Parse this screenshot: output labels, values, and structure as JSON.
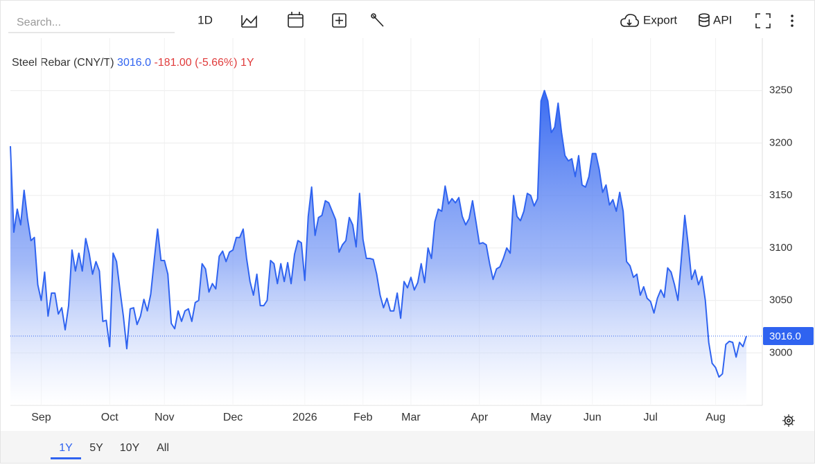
{
  "toolbar": {
    "search_placeholder": "Search...",
    "interval": "1D",
    "export": "Export",
    "api": "API"
  },
  "range_buttons": [
    "1Y",
    "5Y",
    "10Y",
    "All"
  ],
  "chart_data": {
    "type": "area",
    "title": "Steel Rebar (CNY/T)",
    "price": "3016.0",
    "change": "-181.00",
    "change_pct": "(-5.66%)",
    "period": "1Y",
    "color": "#2f63f0",
    "change_color": "#e03b3b",
    "grid": true,
    "ylim": [
      2950,
      3300
    ],
    "yticks": [
      3000,
      3050,
      3100,
      3150,
      3200,
      3250
    ],
    "last_value_label": "3016.0",
    "categories": [
      null,
      null,
      null,
      null,
      null,
      null,
      null,
      null,
      null,
      "Sep",
      null,
      null,
      null,
      null,
      null,
      null,
      null,
      null,
      null,
      null,
      null,
      null,
      null,
      null,
      null,
      null,
      null,
      null,
      null,
      "Oct",
      null,
      null,
      null,
      null,
      null,
      null,
      null,
      null,
      null,
      null,
      null,
      null,
      null,
      null,
      null,
      "Nov",
      null,
      null,
      null,
      null,
      null,
      null,
      null,
      null,
      null,
      null,
      null,
      null,
      null,
      null,
      null,
      null,
      null,
      null,
      null,
      "Dec",
      null,
      null,
      null,
      null,
      null,
      null,
      null,
      null,
      null,
      null,
      null,
      null,
      null,
      null,
      null,
      null,
      null,
      null,
      null,
      null,
      "2026",
      null,
      null,
      null,
      null,
      null,
      null,
      null,
      null,
      null,
      null,
      null,
      null,
      null,
      null,
      null,
      null,
      "Feb",
      null,
      null,
      null,
      null,
      null,
      null,
      null,
      null,
      null,
      null,
      null,
      null,
      null,
      "Mar",
      null,
      null,
      null,
      null,
      null,
      null,
      null,
      null,
      null,
      null,
      null,
      null,
      null,
      null,
      null,
      null,
      null,
      null,
      null,
      "Apr",
      null,
      null,
      null,
      null,
      null,
      null,
      null,
      null,
      null,
      null,
      null,
      null,
      null,
      null,
      null,
      null,
      null,
      "May",
      null,
      null,
      null,
      null,
      null,
      null,
      null,
      null,
      null,
      null,
      null,
      null,
      null,
      null,
      "Jun",
      null,
      null,
      null,
      null,
      null,
      null,
      null,
      null,
      null,
      null,
      null,
      null,
      null,
      null,
      null,
      null,
      "Jul",
      null,
      null,
      null,
      null,
      null,
      null,
      null,
      null,
      null,
      null,
      null,
      null,
      null,
      null,
      null,
      null,
      null,
      null,
      "Aug",
      null,
      null,
      null,
      null,
      null,
      null,
      null,
      null,
      null
    ],
    "values": [
      3197,
      3115,
      3137,
      3122,
      3155,
      3128,
      3107,
      3110,
      3065,
      3050,
      3077,
      3035,
      3057,
      3057,
      3037,
      3043,
      3022,
      3045,
      3098,
      3078,
      3095,
      3078,
      3109,
      3095,
      3075,
      3087,
      3078,
      3030,
      3031,
      3006,
      3095,
      3087,
      3060,
      3035,
      3004,
      3042,
      3043,
      3027,
      3035,
      3051,
      3040,
      3056,
      3088,
      3118,
      3088,
      3088,
      3075,
      3028,
      3023,
      3040,
      3030,
      3040,
      3042,
      3030,
      3048,
      3050,
      3085,
      3080,
      3058,
      3066,
      3061,
      3092,
      3097,
      3087,
      3096,
      3098,
      3110,
      3110,
      3118,
      3090,
      3068,
      3055,
      3075,
      3045,
      3045,
      3050,
      3088,
      3085,
      3066,
      3085,
      3068,
      3086,
      3066,
      3094,
      3107,
      3105,
      3069,
      3130,
      3158,
      3112,
      3129,
      3131,
      3145,
      3143,
      3135,
      3127,
      3096,
      3103,
      3107,
      3129,
      3122,
      3101,
      3152,
      3108,
      3090,
      3090,
      3089,
      3075,
      3055,
      3043,
      3052,
      3040,
      3040,
      3057,
      3033,
      3068,
      3062,
      3072,
      3060,
      3067,
      3085,
      3067,
      3100,
      3090,
      3125,
      3137,
      3135,
      3159,
      3142,
      3147,
      3143,
      3148,
      3130,
      3122,
      3128,
      3145,
      3125,
      3104,
      3105,
      3103,
      3085,
      3070,
      3080,
      3082,
      3090,
      3100,
      3095,
      3150,
      3130,
      3126,
      3135,
      3152,
      3150,
      3140,
      3147,
      3240,
      3250,
      3240,
      3210,
      3215,
      3238,
      3210,
      3188,
      3183,
      3185,
      3168,
      3188,
      3160,
      3158,
      3168,
      3190,
      3190,
      3175,
      3153,
      3160,
      3141,
      3146,
      3135,
      3153,
      3135,
      3087,
      3083,
      3072,
      3075,
      3055,
      3063,
      3052,
      3049,
      3038,
      3052,
      3060,
      3053,
      3081,
      3077,
      3065,
      3050,
      3090,
      3131,
      3103,
      3070,
      3079,
      3065,
      3073,
      3050,
      3010,
      2990,
      2986,
      2977,
      2980,
      3008,
      3011,
      3010,
      2996,
      3010,
      3006,
      3016
    ]
  }
}
